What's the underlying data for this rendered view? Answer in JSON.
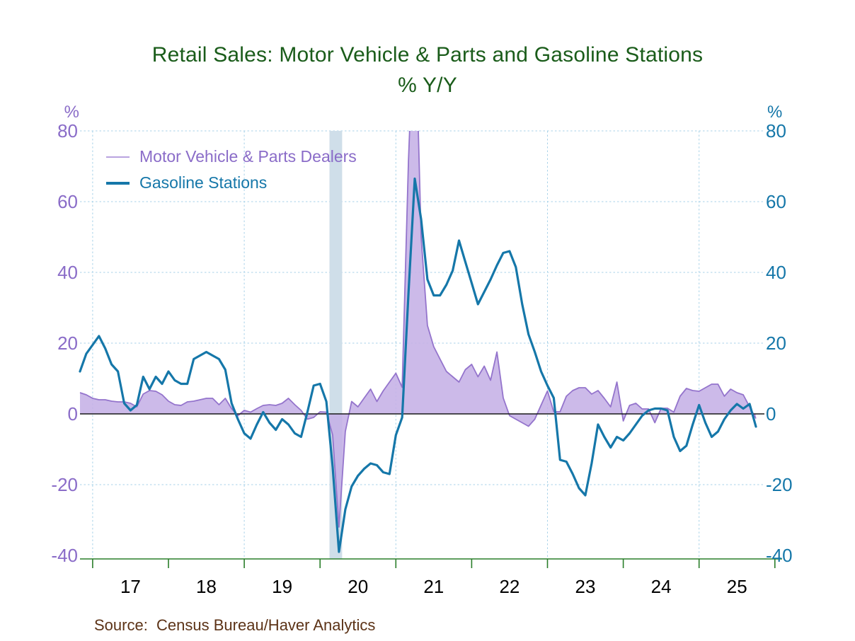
{
  "title": {
    "line1": "Retail Sales: Motor Vehicle & Parts and Gasoline Stations",
    "line2": "% Y/Y"
  },
  "legend": {
    "items": [
      {
        "label": "Motor Vehicle & Parts Dealers"
      },
      {
        "label": "Gasoline Stations"
      }
    ]
  },
  "source_note": "Source:  Census Bureau/Haver Analytics",
  "chart_data": {
    "type": "line",
    "title": "Retail Sales: Motor Vehicle & Parts and Gasoline Stations",
    "subtitle": "% Y/Y",
    "left_unit": "%",
    "right_unit": "%",
    "ylim": [
      -40,
      80
    ],
    "yticks": [
      80,
      60,
      40,
      20,
      0,
      -20,
      -40
    ],
    "x_tick_labels": [
      "17",
      "18",
      "19",
      "20",
      "21",
      "22",
      "23",
      "24",
      "25"
    ],
    "grid": "dashed light blue, horizontal at y ticks and vertical at January of odd years",
    "legend_position": "top-left inside plot",
    "recession_band": {
      "from": "2020-02",
      "to": "2020-04"
    },
    "colors": {
      "grid": "#a8d2e8",
      "recession_band": "#cfdee9",
      "zero_line": "#1a1a1a",
      "axis_green": "#2a7e2a",
      "left_axis_text": "#8a6cc8",
      "right_axis_text": "#1577a9",
      "x_axis_text": "#000000",
      "title_green": "#1a5c1a",
      "source_brown": "#5c3317"
    },
    "months": [
      "2016-11",
      "2016-12",
      "2017-01",
      "2017-02",
      "2017-03",
      "2017-04",
      "2017-05",
      "2017-06",
      "2017-07",
      "2017-08",
      "2017-09",
      "2017-10",
      "2017-11",
      "2017-12",
      "2018-01",
      "2018-02",
      "2018-03",
      "2018-04",
      "2018-05",
      "2018-06",
      "2018-07",
      "2018-08",
      "2018-09",
      "2018-10",
      "2018-11",
      "2018-12",
      "2019-01",
      "2019-02",
      "2019-03",
      "2019-04",
      "2019-05",
      "2019-06",
      "2019-07",
      "2019-08",
      "2019-09",
      "2019-10",
      "2019-11",
      "2019-12",
      "2020-01",
      "2020-02",
      "2020-03",
      "2020-04",
      "2020-05",
      "2020-06",
      "2020-07",
      "2020-08",
      "2020-09",
      "2020-10",
      "2020-11",
      "2020-12",
      "2021-01",
      "2021-02",
      "2021-03",
      "2021-04",
      "2021-05",
      "2021-06",
      "2021-07",
      "2021-08",
      "2021-09",
      "2021-10",
      "2021-11",
      "2021-12",
      "2022-01",
      "2022-02",
      "2022-03",
      "2022-04",
      "2022-05",
      "2022-06",
      "2022-07",
      "2022-08",
      "2022-09",
      "2022-10",
      "2022-11",
      "2022-12",
      "2023-01",
      "2023-02",
      "2023-03",
      "2023-04",
      "2023-05",
      "2023-06",
      "2023-07",
      "2023-08",
      "2023-09",
      "2023-10",
      "2023-11",
      "2023-12",
      "2024-01",
      "2024-02",
      "2024-03",
      "2024-04",
      "2024-05",
      "2024-06",
      "2024-07",
      "2024-08",
      "2024-09",
      "2024-10",
      "2024-11",
      "2024-12",
      "2025-01",
      "2025-02",
      "2025-03",
      "2025-04",
      "2025-05",
      "2025-06",
      "2025-07",
      "2025-08",
      "2025-09",
      "2025-10"
    ],
    "series": [
      {
        "name": "Motor Vehicle & Parts Dealers",
        "style": "area",
        "color": "#9474cc",
        "fill": "#c5b0e6",
        "note": "April 2021 value exceeds top of chart and is clipped at +80",
        "values": [
          6,
          5.4,
          4.4,
          4,
          4,
          3.6,
          3.4,
          3.4,
          3,
          2,
          5.6,
          6.6,
          6.4,
          5.4,
          3.6,
          2.6,
          2.4,
          3.4,
          3.6,
          4,
          4.4,
          4.4,
          2.6,
          4.4,
          1.5,
          -0.5,
          1,
          0.5,
          1.5,
          2.4,
          2.6,
          2.4,
          3,
          4.4,
          2.6,
          1,
          -1.5,
          -1,
          0.6,
          0.5,
          -6,
          -32,
          -5,
          3.5,
          2,
          4.5,
          7,
          3.5,
          6.5,
          9,
          11.5,
          7.5,
          71.5,
          118,
          50,
          25,
          19,
          15.5,
          12,
          10.5,
          9,
          12.5,
          14,
          10.5,
          13.5,
          9.5,
          17.5,
          4.5,
          -0.5,
          -1.5,
          -2.5,
          -3.5,
          -1.5,
          2.5,
          6.5,
          0.6,
          0.6,
          5,
          6.6,
          7.4,
          7.4,
          5.6,
          6.6,
          4.4,
          2,
          9,
          -2,
          2.4,
          3,
          1.4,
          1.4,
          -2.5,
          1.6,
          1.6,
          0.5,
          5,
          7.2,
          6.6,
          6.4,
          7.4,
          8.4,
          8.4,
          5,
          7,
          6,
          5.4,
          2,
          -1.3
        ]
      },
      {
        "name": "Gasoline Stations",
        "style": "line",
        "color": "#1577a9",
        "values": [
          12,
          17,
          19.5,
          22,
          18.5,
          14,
          12,
          3,
          1,
          2.5,
          10.5,
          7,
          10.5,
          8.5,
          12,
          9.5,
          8.5,
          8.5,
          15.5,
          16.5,
          17.5,
          16.5,
          15.5,
          12.5,
          3,
          -1.5,
          -5.5,
          -7,
          -3,
          0.5,
          -2.5,
          -4.5,
          -1.5,
          -3,
          -5.5,
          -6.5,
          0.5,
          8,
          8.5,
          3.5,
          -15,
          -39,
          -27,
          -20.5,
          -17.5,
          -15.5,
          -14,
          -14.5,
          -16.5,
          -17,
          -6,
          -1,
          34,
          66.5,
          55,
          38,
          33.5,
          33.5,
          36.5,
          40.5,
          49,
          43,
          37,
          31,
          34.5,
          38,
          42,
          45.5,
          46,
          41.5,
          31,
          22.5,
          17.5,
          12,
          8,
          4.5,
          -13,
          -13.5,
          -17,
          -21,
          -23,
          -14,
          -3,
          -6.5,
          -9.5,
          -6.5,
          -7.5,
          -5.5,
          -3,
          -0.5,
          1,
          1.5,
          1.5,
          1,
          -6.5,
          -10.5,
          -9,
          -3,
          2.5,
          -2.5,
          -6.5,
          -5,
          -1.5,
          1,
          2.8,
          1.5,
          2.8,
          -3.6
        ]
      }
    ]
  }
}
